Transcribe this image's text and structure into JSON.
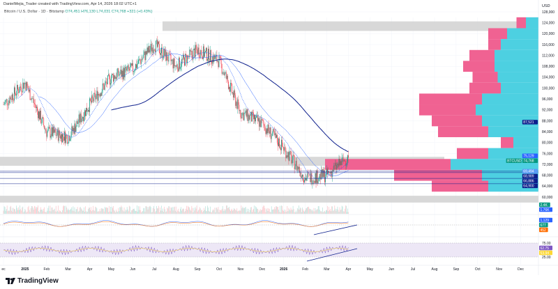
{
  "header": {
    "credit": "DanielMejia_Trader created with TradingView.com, Apr 14, 2026 18:02 UTC+1",
    "symbol": "Bitcoin / U.S. Dollar · 1D · Bitstamp",
    "open": "O74,451",
    "high": "H76,130",
    "low": "L74,031",
    "close": "C74,768",
    "change": "+321 (+0.43%)"
  },
  "currency": "USD",
  "brand": "TradingView",
  "colors": {
    "up": "#089981",
    "down": "#f23645",
    "ma_fast": "#2962ff",
    "ma_slow": "#0d1f8c",
    "zone": "#d1d1d1",
    "vp_sell": "#f06292",
    "vp_buy": "#4dd0e1",
    "rsi_bg": "#ede7f6"
  },
  "chart_data": {
    "type": "candlestick",
    "ylim": [
      58000,
      130000
    ],
    "y_ticks": [
      "128,000",
      "124,000",
      "120,000",
      "116,000",
      "112,000",
      "108,000",
      "104,000",
      "100,000",
      "96,000",
      "92,000",
      "88,000",
      "84,000",
      "80,000",
      "76,000",
      "72,000",
      "68,000",
      "64,000",
      "60,000"
    ],
    "x_ticks": [
      "ec",
      "2025",
      "Feb",
      "Mar",
      "Apr",
      "May",
      "Jun",
      "Jul",
      "Aug",
      "Sep",
      "Oct",
      "Nov",
      "Dec",
      "2026",
      "Feb",
      "Mar",
      "Apr",
      "May",
      "Jun",
      "Jul",
      "Aug",
      "Sep",
      "Oct",
      "Nov",
      "Dec"
    ],
    "monthly_close": [
      94000,
      102000,
      84000,
      82000,
      94000,
      104000,
      107000,
      116000,
      108000,
      114000,
      110000,
      91000,
      87000,
      78000,
      67000,
      68000,
      74768
    ],
    "zones": [
      [
        121000,
        124500
      ],
      [
        71500,
        74800
      ],
      [
        58000,
        60500
      ]
    ],
    "h_lines": [
      69494,
      68989,
      66886,
      64900
    ],
    "price_labels": [
      {
        "text": "87,521",
        "color": "#0d1f8c",
        "price": 87521
      },
      {
        "text": "75,129",
        "color": "#2962ff",
        "price": 75129
      },
      {
        "text": "74,768",
        "color": "#089981",
        "price": 74768,
        "tag": "BTCUSD"
      },
      {
        "text": "69,494",
        "color": "#5b9cf6",
        "price": 69494
      },
      {
        "text": "68,989",
        "color": "#0d1f8c",
        "price": 68989
      },
      {
        "text": "66,886",
        "color": "#0d1f8c",
        "price": 66886
      },
      {
        "text": "64,900",
        "color": "#0d1f8c",
        "price": 64900
      }
    ],
    "volume_profile": [
      {
        "price": 124000,
        "sell": 3,
        "buy": 4
      },
      {
        "price": 120000,
        "sell": 6,
        "buy": 10
      },
      {
        "price": 116000,
        "sell": 4,
        "buy": 12
      },
      {
        "price": 112000,
        "sell": 8,
        "buy": 14
      },
      {
        "price": 108000,
        "sell": 10,
        "buy": 14
      },
      {
        "price": 104000,
        "sell": 8,
        "buy": 13
      },
      {
        "price": 100000,
        "sell": 10,
        "buy": 12
      },
      {
        "price": 96000,
        "sell": 20,
        "buy": 18
      },
      {
        "price": 92000,
        "sell": 18,
        "buy": 20
      },
      {
        "price": 88000,
        "sell": 16,
        "buy": 18
      },
      {
        "price": 84000,
        "sell": 16,
        "buy": 16
      },
      {
        "price": 80000,
        "sell": 4,
        "buy": 8
      },
      {
        "price": 76000,
        "sell": 10,
        "buy": 16
      },
      {
        "price": 72000,
        "sell": 40,
        "buy": 28
      },
      {
        "price": 68000,
        "sell": 28,
        "buy": 18
      },
      {
        "price": 64000,
        "sell": 18,
        "buy": 16
      }
    ],
    "volume_labels": [
      {
        "text": "2.4K",
        "color": "#089981"
      },
      {
        "text": "1.76K",
        "color": "#2962ff"
      }
    ],
    "macd_labels": [
      {
        "text": "1,129",
        "color": "#2962ff"
      },
      {
        "text": "677",
        "color": "#089981"
      },
      {
        "text": "452",
        "color": "#ff6d00"
      }
    ],
    "rsi_ticks": [
      "75.00",
      "25.00"
    ],
    "rsi_labels": [
      {
        "text": "62.75",
        "color": "#7e57c2"
      },
      {
        "text": "53.94",
        "color": "#fdd835"
      }
    ]
  }
}
